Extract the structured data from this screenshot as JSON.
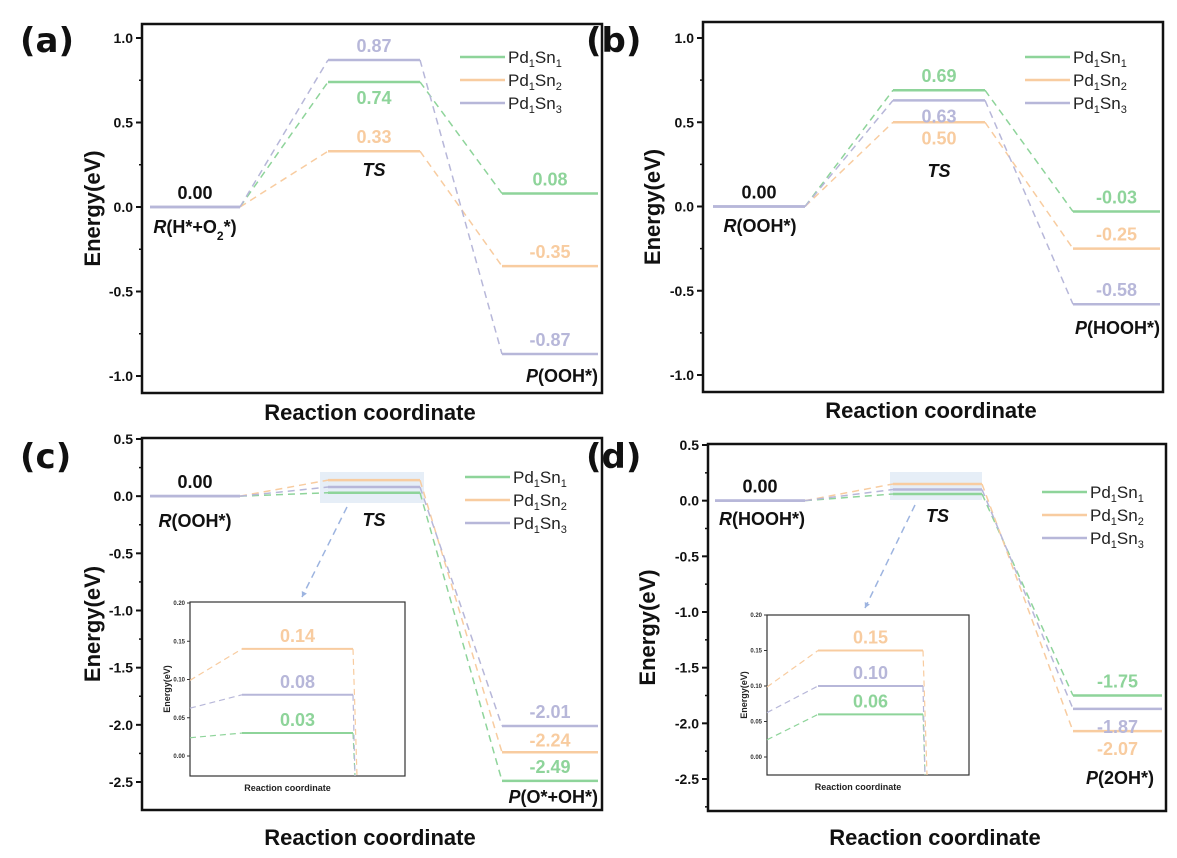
{
  "chart_data": [
    {
      "type": "energy-profile",
      "panel_label": "(a)",
      "xlabel": "Reaction coordinate",
      "ylabel": "Energy(eV)",
      "ylim": [
        -1.1,
        1.1
      ],
      "yticks": [
        1.0,
        0.5,
        0.0,
        -0.5,
        -1.0
      ],
      "ytick_labels": [
        "1.0",
        "0.5",
        "0.0",
        "-0.5",
        "-1.0"
      ],
      "states": [
        "R(H*+O2*)",
        "TS",
        "P(OOH*)"
      ],
      "state_labels": [
        {
          "italic": "R",
          "rest": "(H*+O",
          "sub": "2",
          "tail": "*)"
        },
        {
          "italic": "TS",
          "rest": "",
          "sub": "",
          "tail": ""
        },
        {
          "italic": "P",
          "rest": "(OOH*)",
          "sub": "",
          "tail": ""
        }
      ],
      "series": [
        {
          "name": "Pd1Sn1",
          "values": [
            0.0,
            0.74,
            0.08
          ],
          "labels": [
            "",
            "0.74",
            "0.08"
          ]
        },
        {
          "name": "Pd1Sn2",
          "values": [
            0.0,
            0.33,
            -0.35
          ],
          "labels": [
            "",
            "0.33",
            "-0.35"
          ]
        },
        {
          "name": "Pd1Sn3",
          "values": [
            0.0,
            0.87,
            -0.87
          ],
          "labels": [
            "",
            "0.87",
            "-0.87"
          ]
        }
      ],
      "reactant_value_label": "0.00",
      "legend": "top-right"
    },
    {
      "type": "energy-profile",
      "panel_label": "(b)",
      "xlabel": "Reaction coordinate",
      "ylabel": "Energy(eV)",
      "ylim": [
        -1.1,
        1.1
      ],
      "yticks": [
        1.0,
        0.5,
        0.0,
        -0.5,
        -1.0
      ],
      "ytick_labels": [
        "1.0",
        "0.5",
        "0.0",
        "-0.5",
        "-1.0"
      ],
      "states": [
        "R(OOH*)",
        "TS",
        "P(HOOH*)"
      ],
      "state_labels": [
        {
          "italic": "R",
          "rest": "(OOH*)",
          "sub": "",
          "tail": ""
        },
        {
          "italic": "TS",
          "rest": "",
          "sub": "",
          "tail": ""
        },
        {
          "italic": "P",
          "rest": "(HOOH*)",
          "sub": "",
          "tail": ""
        }
      ],
      "series": [
        {
          "name": "Pd1Sn1",
          "values": [
            0.0,
            0.69,
            -0.03
          ],
          "labels": [
            "",
            "0.69",
            "-0.03"
          ]
        },
        {
          "name": "Pd1Sn2",
          "values": [
            0.0,
            0.5,
            -0.25
          ],
          "labels": [
            "",
            "0.50",
            "-0.25"
          ]
        },
        {
          "name": "Pd1Sn3",
          "values": [
            0.0,
            0.63,
            -0.58
          ],
          "labels": [
            "",
            "0.63",
            "-0.58"
          ]
        }
      ],
      "reactant_value_label": "0.00",
      "legend": "top-right"
    },
    {
      "type": "energy-profile",
      "panel_label": "(c)",
      "xlabel": "Reaction coordinate",
      "ylabel": "Energy(eV)",
      "ylim": [
        -2.75,
        0.5
      ],
      "yticks": [
        0.5,
        0.0,
        -0.5,
        -1.0,
        -1.5,
        -2.0,
        -2.5
      ],
      "ytick_labels": [
        "0.5",
        "0.0",
        "-0.5",
        "-1.0",
        "-1.5",
        "-2.0",
        "-2.5"
      ],
      "states": [
        "R(OOH*)",
        "TS",
        "P(O*+OH*)"
      ],
      "state_labels": [
        {
          "italic": "R",
          "rest": "(OOH*)",
          "sub": "",
          "tail": ""
        },
        {
          "italic": "TS",
          "rest": "",
          "sub": "",
          "tail": ""
        },
        {
          "italic": "P",
          "rest": "(O*+OH*)",
          "sub": "",
          "tail": ""
        }
      ],
      "series": [
        {
          "name": "Pd1Sn1",
          "values": [
            0.0,
            0.03,
            -2.49
          ],
          "labels": [
            "",
            "",
            "-2.49"
          ]
        },
        {
          "name": "Pd1Sn2",
          "values": [
            0.0,
            0.14,
            -2.24
          ],
          "labels": [
            "",
            "",
            "-2.24"
          ]
        },
        {
          "name": "Pd1Sn3",
          "values": [
            0.0,
            0.08,
            -2.01
          ],
          "labels": [
            "",
            "",
            "-2.01"
          ]
        }
      ],
      "reactant_value_label": "0.00",
      "legend": "top-right",
      "inset": {
        "xlabel": "Reaction coordinate",
        "ylabel": "Energy(eV)",
        "ylim": [
          -0.025,
          0.2
        ],
        "yticks": [
          0.2,
          0.15,
          0.1,
          0.05,
          0.0
        ],
        "ytick_labels": [
          "0.20",
          "0.15",
          "0.10",
          "0.05",
          "0.00"
        ],
        "ts_labels": {
          "Pd1Sn1": "0.03",
          "Pd1Sn2": "0.14",
          "Pd1Sn3": "0.08"
        }
      }
    },
    {
      "type": "energy-profile",
      "panel_label": "(d)",
      "xlabel": "Reaction coordinate",
      "ylabel": "Energy(eV)",
      "ylim": [
        -2.75,
        0.5
      ],
      "yticks": [
        0.5,
        0.0,
        -0.5,
        -1.0,
        -1.5,
        -2.0,
        -2.5
      ],
      "ytick_labels": [
        "0.5",
        "0.0",
        "-0.5",
        "-1.0",
        "-1.5",
        "-2.0",
        "-2.5"
      ],
      "states": [
        "R(HOOH*)",
        "TS",
        "P(2OH*)"
      ],
      "state_labels": [
        {
          "italic": "R",
          "rest": "(HOOH*)",
          "sub": "",
          "tail": ""
        },
        {
          "italic": "TS",
          "rest": "",
          "sub": "",
          "tail": ""
        },
        {
          "italic": "P",
          "rest": "(2OH*)",
          "sub": "",
          "tail": ""
        }
      ],
      "series": [
        {
          "name": "Pd1Sn1",
          "values": [
            0.0,
            0.06,
            -1.75
          ],
          "labels": [
            "",
            "",
            "-1.75"
          ]
        },
        {
          "name": "Pd1Sn2",
          "values": [
            0.0,
            0.15,
            -2.07
          ],
          "labels": [
            "",
            "",
            "-2.07"
          ]
        },
        {
          "name": "Pd1Sn3",
          "values": [
            0.0,
            0.1,
            -1.87
          ],
          "labels": [
            "",
            "",
            "-1.87"
          ]
        }
      ],
      "reactant_value_label": "0.00",
      "legend": "top-right",
      "inset": {
        "xlabel": "Reaction coordinate",
        "ylabel": "Energy(eV)",
        "ylim": [
          -0.025,
          0.2
        ],
        "yticks": [
          0.2,
          0.15,
          0.1,
          0.05,
          0.0
        ],
        "ytick_labels": [
          "0.20",
          "0.15",
          "0.10",
          "0.05",
          "0.00"
        ],
        "ts_labels": {
          "Pd1Sn1": "0.06",
          "Pd1Sn2": "0.15",
          "Pd1Sn3": "0.10"
        }
      }
    }
  ],
  "legend": {
    "entries": [
      {
        "key": "Pd1Sn1",
        "base": "Pd",
        "sub1": "1",
        "mid": "Sn",
        "sub2": "1",
        "color": "#8ed49a"
      },
      {
        "key": "Pd1Sn2",
        "base": "Pd",
        "sub1": "1",
        "mid": "Sn",
        "sub2": "2",
        "color": "#f8cca0"
      },
      {
        "key": "Pd1Sn3",
        "base": "Pd",
        "sub1": "1",
        "mid": "Sn",
        "sub2": "3",
        "color": "#b7b7d9"
      }
    ]
  },
  "colors": {
    "axis": "#111111",
    "reactant_line": "#b7b7d9",
    "highlight_box": "#e6eef7"
  }
}
